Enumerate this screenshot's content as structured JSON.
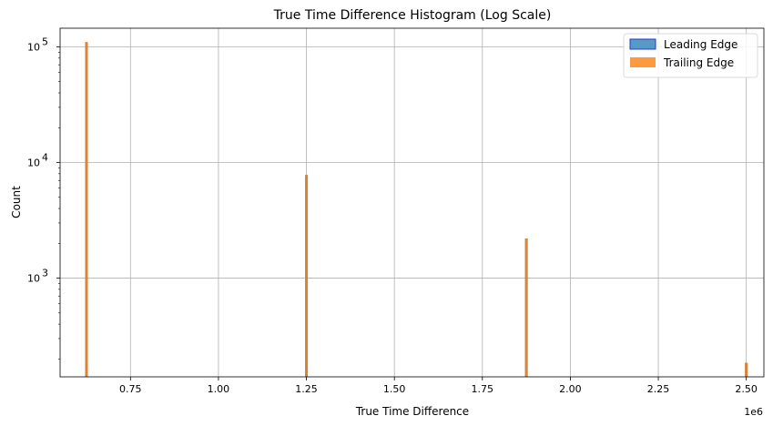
{
  "chart_data": {
    "type": "bar",
    "title": "True Time Difference Histogram (Log Scale)",
    "xlabel": "True Time Difference",
    "ylabel": "Count",
    "x_offset_label": "1e6",
    "xlim": [
      0.55,
      2.55
    ],
    "ylim": [
      140,
      145000
    ],
    "yscale": "log",
    "grid": true,
    "legend_position": "top-right",
    "x_ticks": [
      {
        "value": 0.75,
        "label": "0.75"
      },
      {
        "value": 1.0,
        "label": "1.00"
      },
      {
        "value": 1.25,
        "label": "1.25"
      },
      {
        "value": 1.5,
        "label": "1.50"
      },
      {
        "value": 1.75,
        "label": "1.75"
      },
      {
        "value": 2.0,
        "label": "2.00"
      },
      {
        "value": 2.25,
        "label": "2.25"
      },
      {
        "value": 2.5,
        "label": "2.50"
      }
    ],
    "y_major_ticks": [
      {
        "value": 1000,
        "base": "10",
        "exp": "3"
      },
      {
        "value": 10000,
        "base": "10",
        "exp": "4"
      },
      {
        "value": 100000,
        "base": "10",
        "exp": "5"
      }
    ],
    "series": [
      {
        "name": "Leading Edge",
        "color": "#1f77b4",
        "bins": [
          {
            "x": 0.625,
            "count": 110000
          },
          {
            "x": 1.25,
            "count": 7800
          },
          {
            "x": 1.875,
            "count": 2200
          },
          {
            "x": 2.5,
            "count": 185
          }
        ]
      },
      {
        "name": "Trailing Edge",
        "color": "#ff7f0e",
        "bins": [
          {
            "x": 0.625,
            "count": 110000
          },
          {
            "x": 1.25,
            "count": 7800
          },
          {
            "x": 1.875,
            "count": 2200
          },
          {
            "x": 2.5,
            "count": 185
          }
        ]
      }
    ]
  }
}
